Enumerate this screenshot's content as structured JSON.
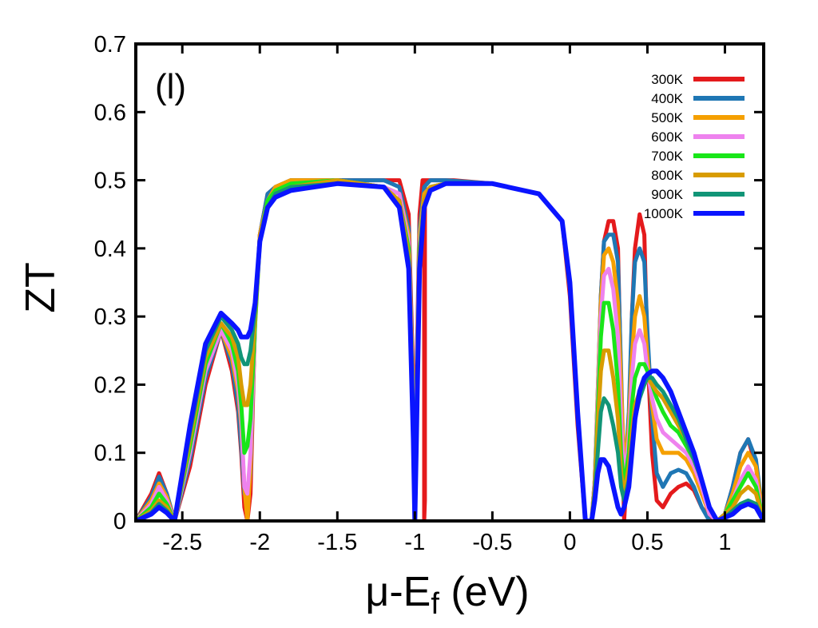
{
  "chart_data": {
    "type": "line",
    "panel_label": "(l)",
    "title": "",
    "xlabel": {
      "main": "μ-E",
      "sub": "f",
      "unit": " (eV)"
    },
    "ylabel": "ZT",
    "xlim": [
      -2.8,
      1.25
    ],
    "ylim": [
      0,
      0.7
    ],
    "xticks": [
      -2.5,
      -2,
      -1.5,
      -1,
      -0.5,
      0,
      0.5,
      1
    ],
    "xtick_labels": [
      "-2.5",
      "-2",
      "-1.5",
      "-1",
      "-0.5",
      "0",
      "0.5",
      "1"
    ],
    "yticks": [
      0,
      0.1,
      0.2,
      0.3,
      0.4,
      0.5,
      0.6,
      0.7
    ],
    "ytick_labels": [
      "0",
      "0.1",
      "0.2",
      "0.3",
      "0.4",
      "0.5",
      "0.6",
      "0.7"
    ],
    "legend_position": "top-right",
    "grid": false,
    "series": [
      {
        "name": "300K",
        "color": "#e41a1c",
        "x": [
          -2.8,
          -2.7,
          -2.65,
          -2.6,
          -2.55,
          -2.45,
          -2.35,
          -2.25,
          -2.18,
          -2.14,
          -2.12,
          -2.1,
          -2.08,
          -2.06,
          -2.03,
          -2,
          -1.95,
          -1.9,
          -1.8,
          -1.5,
          -1.2,
          -1.1,
          -1.04,
          -1.01,
          -1.0,
          -0.99,
          -0.97,
          -0.95,
          -0.94,
          -0.94,
          -0.935,
          -0.935,
          -0.93,
          -0.93,
          -0.92,
          -0.9,
          -0.85,
          -0.75,
          -0.5,
          -0.2,
          -0.05,
          0.0,
          0.05,
          0.1,
          0.14,
          0.16,
          0.18,
          0.2,
          0.22,
          0.25,
          0.28,
          0.31,
          0.33,
          0.35,
          0.38,
          0.4,
          0.42,
          0.45,
          0.48,
          0.5,
          0.53,
          0.56,
          0.6,
          0.65,
          0.7,
          0.75,
          0.8,
          0.85,
          0.9,
          0.95,
          1.0,
          1.05,
          1.1,
          1.15,
          1.2,
          1.25
        ],
        "y": [
          0.0,
          0.04,
          0.07,
          0.04,
          0.0,
          0.08,
          0.2,
          0.28,
          0.22,
          0.16,
          0.1,
          0.02,
          0.0,
          0.04,
          0.3,
          0.42,
          0.48,
          0.49,
          0.5,
          0.5,
          0.5,
          0.5,
          0.45,
          0.2,
          0.0,
          0.2,
          0.45,
          0.5,
          0.5,
          0.0,
          0.03,
          0.5,
          0.5,
          0.5,
          0.5,
          0.5,
          0.5,
          0.5,
          0.495,
          0.48,
          0.44,
          0.33,
          0.14,
          0.0,
          0.0,
          0.05,
          0.18,
          0.33,
          0.41,
          0.44,
          0.44,
          0.4,
          0.2,
          0.0,
          0.12,
          0.3,
          0.4,
          0.45,
          0.42,
          0.25,
          0.1,
          0.03,
          0.02,
          0.04,
          0.05,
          0.055,
          0.045,
          0.02,
          0.005,
          0.0,
          0.01,
          0.05,
          0.1,
          0.12,
          0.08,
          0.0
        ]
      },
      {
        "name": "400K",
        "color": "#1f77b4",
        "x": [
          -2.8,
          -2.7,
          -2.65,
          -2.6,
          -2.55,
          -2.45,
          -2.35,
          -2.25,
          -2.18,
          -2.14,
          -2.12,
          -2.1,
          -2.08,
          -2.06,
          -2.03,
          -2,
          -1.95,
          -1.9,
          -1.8,
          -1.5,
          -1.2,
          -1.1,
          -1.04,
          -1.01,
          -1.0,
          -0.99,
          -0.97,
          -0.94,
          -0.9,
          -0.8,
          -0.5,
          -0.2,
          -0.05,
          0.0,
          0.05,
          0.1,
          0.14,
          0.16,
          0.18,
          0.2,
          0.22,
          0.25,
          0.28,
          0.31,
          0.33,
          0.35,
          0.38,
          0.4,
          0.42,
          0.45,
          0.48,
          0.5,
          0.53,
          0.56,
          0.6,
          0.65,
          0.7,
          0.75,
          0.8,
          0.85,
          0.9,
          0.95,
          1.0,
          1.05,
          1.1,
          1.15,
          1.2,
          1.25
        ],
        "y": [
          0.0,
          0.035,
          0.065,
          0.04,
          0.0,
          0.09,
          0.21,
          0.28,
          0.23,
          0.17,
          0.11,
          0.04,
          0.03,
          0.07,
          0.3,
          0.42,
          0.48,
          0.49,
          0.5,
          0.5,
          0.5,
          0.49,
          0.43,
          0.18,
          0.0,
          0.18,
          0.43,
          0.49,
          0.5,
          0.5,
          0.495,
          0.48,
          0.44,
          0.34,
          0.15,
          0.0,
          0.0,
          0.06,
          0.19,
          0.33,
          0.41,
          0.42,
          0.42,
          0.38,
          0.22,
          0.05,
          0.16,
          0.3,
          0.38,
          0.4,
          0.38,
          0.28,
          0.15,
          0.07,
          0.05,
          0.07,
          0.075,
          0.07,
          0.05,
          0.02,
          0.0,
          0.0,
          0.01,
          0.05,
          0.1,
          0.12,
          0.09,
          0.0
        ]
      },
      {
        "name": "500K",
        "color": "#f5a000",
        "x": [
          -2.8,
          -2.7,
          -2.65,
          -2.6,
          -2.55,
          -2.45,
          -2.35,
          -2.25,
          -2.18,
          -2.14,
          -2.12,
          -2.1,
          -2.08,
          -2.06,
          -2.03,
          -2,
          -1.95,
          -1.9,
          -1.8,
          -1.5,
          -1.2,
          -1.1,
          -1.04,
          -1.01,
          -1.0,
          -0.99,
          -0.97,
          -0.94,
          -0.9,
          -0.8,
          -0.5,
          -0.2,
          -0.05,
          0.0,
          0.05,
          0.1,
          0.14,
          0.16,
          0.18,
          0.2,
          0.22,
          0.25,
          0.28,
          0.31,
          0.33,
          0.35,
          0.38,
          0.4,
          0.42,
          0.45,
          0.48,
          0.5,
          0.53,
          0.56,
          0.6,
          0.65,
          0.7,
          0.75,
          0.8,
          0.85,
          0.9,
          0.95,
          1.0,
          1.05,
          1.1,
          1.15,
          1.2,
          1.25
        ],
        "y": [
          0.0,
          0.03,
          0.055,
          0.035,
          0.0,
          0.1,
          0.22,
          0.28,
          0.24,
          0.19,
          0.14,
          0.05,
          0.0,
          0.08,
          0.3,
          0.42,
          0.47,
          0.49,
          0.5,
          0.5,
          0.49,
          0.48,
          0.42,
          0.17,
          0.0,
          0.17,
          0.42,
          0.48,
          0.49,
          0.495,
          0.495,
          0.48,
          0.44,
          0.35,
          0.16,
          0.0,
          0.0,
          0.06,
          0.19,
          0.32,
          0.39,
          0.4,
          0.38,
          0.32,
          0.2,
          0.07,
          0.14,
          0.24,
          0.3,
          0.33,
          0.3,
          0.24,
          0.17,
          0.12,
          0.1,
          0.1,
          0.1,
          0.09,
          0.07,
          0.04,
          0.01,
          0.0,
          0.01,
          0.04,
          0.08,
          0.1,
          0.08,
          0.0
        ]
      },
      {
        "name": "600K",
        "color": "#ee82ee",
        "x": [
          -2.8,
          -2.7,
          -2.65,
          -2.6,
          -2.55,
          -2.45,
          -2.35,
          -2.25,
          -2.18,
          -2.14,
          -2.12,
          -2.1,
          -2.08,
          -2.06,
          -2.03,
          -2,
          -1.95,
          -1.9,
          -1.8,
          -1.5,
          -1.2,
          -1.1,
          -1.04,
          -1.01,
          -1.0,
          -0.99,
          -0.97,
          -0.94,
          -0.9,
          -0.8,
          -0.5,
          -0.2,
          -0.05,
          0.0,
          0.05,
          0.1,
          0.14,
          0.16,
          0.18,
          0.2,
          0.22,
          0.25,
          0.28,
          0.31,
          0.33,
          0.35,
          0.38,
          0.4,
          0.42,
          0.45,
          0.48,
          0.5,
          0.53,
          0.56,
          0.6,
          0.65,
          0.7,
          0.75,
          0.8,
          0.85,
          0.9,
          0.95,
          1.0,
          1.05,
          1.1,
          1.15,
          1.2,
          1.25
        ],
        "y": [
          0.0,
          0.025,
          0.05,
          0.03,
          0.0,
          0.1,
          0.22,
          0.28,
          0.25,
          0.2,
          0.15,
          0.05,
          0.04,
          0.1,
          0.29,
          0.41,
          0.47,
          0.485,
          0.495,
          0.5,
          0.49,
          0.48,
          0.41,
          0.16,
          0.0,
          0.16,
          0.41,
          0.47,
          0.49,
          0.495,
          0.495,
          0.48,
          0.44,
          0.35,
          0.16,
          0.0,
          0.0,
          0.06,
          0.18,
          0.3,
          0.36,
          0.37,
          0.34,
          0.27,
          0.15,
          0.06,
          0.12,
          0.21,
          0.26,
          0.28,
          0.26,
          0.22,
          0.18,
          0.15,
          0.13,
          0.12,
          0.11,
          0.1,
          0.08,
          0.05,
          0.01,
          0.0,
          0.01,
          0.03,
          0.06,
          0.08,
          0.06,
          0.0
        ]
      },
      {
        "name": "700K",
        "color": "#19e619",
        "x": [
          -2.8,
          -2.7,
          -2.65,
          -2.6,
          -2.55,
          -2.45,
          -2.35,
          -2.25,
          -2.18,
          -2.14,
          -2.12,
          -2.1,
          -2.08,
          -2.06,
          -2.03,
          -2,
          -1.95,
          -1.9,
          -1.8,
          -1.5,
          -1.2,
          -1.1,
          -1.04,
          -1.01,
          -1.0,
          -0.99,
          -0.97,
          -0.94,
          -0.9,
          -0.8,
          -0.5,
          -0.2,
          -0.05,
          0.0,
          0.05,
          0.1,
          0.14,
          0.16,
          0.18,
          0.2,
          0.22,
          0.25,
          0.28,
          0.31,
          0.33,
          0.35,
          0.38,
          0.4,
          0.42,
          0.45,
          0.48,
          0.5,
          0.53,
          0.56,
          0.6,
          0.65,
          0.7,
          0.75,
          0.8,
          0.85,
          0.9,
          0.95,
          1.0,
          1.05,
          1.1,
          1.15,
          1.2,
          1.25
        ],
        "y": [
          0.0,
          0.02,
          0.04,
          0.025,
          0.0,
          0.11,
          0.23,
          0.29,
          0.26,
          0.22,
          0.17,
          0.1,
          0.11,
          0.15,
          0.29,
          0.41,
          0.47,
          0.485,
          0.495,
          0.5,
          0.49,
          0.47,
          0.4,
          0.15,
          0.0,
          0.15,
          0.4,
          0.47,
          0.49,
          0.495,
          0.495,
          0.48,
          0.44,
          0.35,
          0.16,
          0.0,
          0.0,
          0.05,
          0.16,
          0.27,
          0.32,
          0.32,
          0.28,
          0.2,
          0.1,
          0.05,
          0.1,
          0.17,
          0.21,
          0.23,
          0.23,
          0.22,
          0.2,
          0.18,
          0.16,
          0.14,
          0.13,
          0.11,
          0.09,
          0.06,
          0.02,
          0.0,
          0.01,
          0.03,
          0.05,
          0.07,
          0.05,
          0.0
        ]
      },
      {
        "name": "800K",
        "color": "#d89c00",
        "x": [
          -2.8,
          -2.7,
          -2.65,
          -2.6,
          -2.55,
          -2.45,
          -2.35,
          -2.25,
          -2.18,
          -2.14,
          -2.12,
          -2.1,
          -2.08,
          -2.06,
          -2.03,
          -2,
          -1.95,
          -1.9,
          -1.8,
          -1.5,
          -1.2,
          -1.1,
          -1.04,
          -1.01,
          -1.0,
          -0.99,
          -0.97,
          -0.94,
          -0.9,
          -0.8,
          -0.5,
          -0.2,
          -0.05,
          0.0,
          0.05,
          0.1,
          0.14,
          0.16,
          0.18,
          0.2,
          0.22,
          0.25,
          0.28,
          0.31,
          0.33,
          0.35,
          0.38,
          0.4,
          0.42,
          0.45,
          0.48,
          0.5,
          0.53,
          0.56,
          0.6,
          0.65,
          0.7,
          0.75,
          0.8,
          0.85,
          0.9,
          0.95,
          1.0,
          1.05,
          1.1,
          1.15,
          1.2,
          1.25
        ],
        "y": [
          0.0,
          0.015,
          0.03,
          0.02,
          0.0,
          0.12,
          0.24,
          0.29,
          0.27,
          0.24,
          0.2,
          0.17,
          0.17,
          0.2,
          0.3,
          0.41,
          0.46,
          0.48,
          0.49,
          0.5,
          0.49,
          0.47,
          0.39,
          0.14,
          0.0,
          0.14,
          0.39,
          0.47,
          0.49,
          0.495,
          0.495,
          0.48,
          0.44,
          0.35,
          0.16,
          0.0,
          0.0,
          0.05,
          0.14,
          0.22,
          0.25,
          0.25,
          0.21,
          0.15,
          0.07,
          0.04,
          0.08,
          0.13,
          0.17,
          0.19,
          0.2,
          0.21,
          0.2,
          0.19,
          0.18,
          0.16,
          0.14,
          0.12,
          0.09,
          0.06,
          0.02,
          0.0,
          0.01,
          0.02,
          0.04,
          0.05,
          0.04,
          0.0
        ]
      },
      {
        "name": "900K",
        "color": "#119577",
        "x": [
          -2.8,
          -2.7,
          -2.65,
          -2.6,
          -2.55,
          -2.45,
          -2.35,
          -2.25,
          -2.18,
          -2.14,
          -2.12,
          -2.1,
          -2.08,
          -2.06,
          -2.03,
          -2,
          -1.95,
          -1.9,
          -1.8,
          -1.5,
          -1.2,
          -1.1,
          -1.04,
          -1.01,
          -1.0,
          -0.99,
          -0.97,
          -0.94,
          -0.9,
          -0.8,
          -0.5,
          -0.2,
          -0.05,
          0.0,
          0.05,
          0.1,
          0.14,
          0.16,
          0.18,
          0.2,
          0.22,
          0.25,
          0.28,
          0.31,
          0.33,
          0.35,
          0.38,
          0.4,
          0.42,
          0.45,
          0.48,
          0.5,
          0.53,
          0.56,
          0.6,
          0.65,
          0.7,
          0.75,
          0.8,
          0.85,
          0.9,
          0.95,
          1.0,
          1.05,
          1.1,
          1.15,
          1.2,
          1.25
        ],
        "y": [
          0.0,
          0.012,
          0.025,
          0.015,
          0.0,
          0.13,
          0.25,
          0.3,
          0.28,
          0.26,
          0.24,
          0.23,
          0.23,
          0.25,
          0.31,
          0.41,
          0.46,
          0.48,
          0.49,
          0.495,
          0.49,
          0.46,
          0.38,
          0.13,
          0.0,
          0.13,
          0.38,
          0.46,
          0.485,
          0.495,
          0.495,
          0.48,
          0.44,
          0.35,
          0.16,
          0.0,
          0.0,
          0.04,
          0.1,
          0.16,
          0.18,
          0.17,
          0.14,
          0.1,
          0.05,
          0.03,
          0.06,
          0.11,
          0.15,
          0.18,
          0.2,
          0.21,
          0.21,
          0.2,
          0.19,
          0.17,
          0.15,
          0.12,
          0.09,
          0.06,
          0.02,
          0.0,
          0.005,
          0.015,
          0.025,
          0.03,
          0.025,
          0.0
        ]
      },
      {
        "name": "1000K",
        "color": "#0a14ff",
        "x": [
          -2.8,
          -2.7,
          -2.65,
          -2.6,
          -2.55,
          -2.45,
          -2.35,
          -2.25,
          -2.18,
          -2.14,
          -2.12,
          -2.1,
          -2.08,
          -2.06,
          -2.03,
          -2,
          -1.95,
          -1.9,
          -1.8,
          -1.5,
          -1.2,
          -1.1,
          -1.04,
          -1.01,
          -1.0,
          -0.99,
          -0.97,
          -0.94,
          -0.9,
          -0.8,
          -0.5,
          -0.2,
          -0.05,
          0.0,
          0.05,
          0.1,
          0.14,
          0.16,
          0.18,
          0.2,
          0.22,
          0.25,
          0.28,
          0.31,
          0.33,
          0.35,
          0.38,
          0.4,
          0.42,
          0.45,
          0.48,
          0.5,
          0.53,
          0.56,
          0.6,
          0.65,
          0.7,
          0.75,
          0.8,
          0.85,
          0.9,
          0.95,
          1.0,
          1.05,
          1.1,
          1.15,
          1.2,
          1.25
        ],
        "y": [
          0.0,
          0.01,
          0.02,
          0.012,
          0.0,
          0.14,
          0.26,
          0.305,
          0.29,
          0.28,
          0.27,
          0.27,
          0.27,
          0.28,
          0.32,
          0.41,
          0.46,
          0.475,
          0.485,
          0.495,
          0.49,
          0.46,
          0.37,
          0.12,
          0.0,
          0.12,
          0.37,
          0.46,
          0.485,
          0.495,
          0.495,
          0.48,
          0.44,
          0.35,
          0.16,
          0.0,
          0.0,
          0.03,
          0.07,
          0.09,
          0.09,
          0.08,
          0.05,
          0.02,
          0.01,
          0.02,
          0.05,
          0.1,
          0.15,
          0.19,
          0.21,
          0.215,
          0.22,
          0.22,
          0.21,
          0.19,
          0.16,
          0.13,
          0.1,
          0.06,
          0.02,
          0.0,
          0.005,
          0.01,
          0.02,
          0.025,
          0.02,
          0.0
        ]
      }
    ]
  }
}
